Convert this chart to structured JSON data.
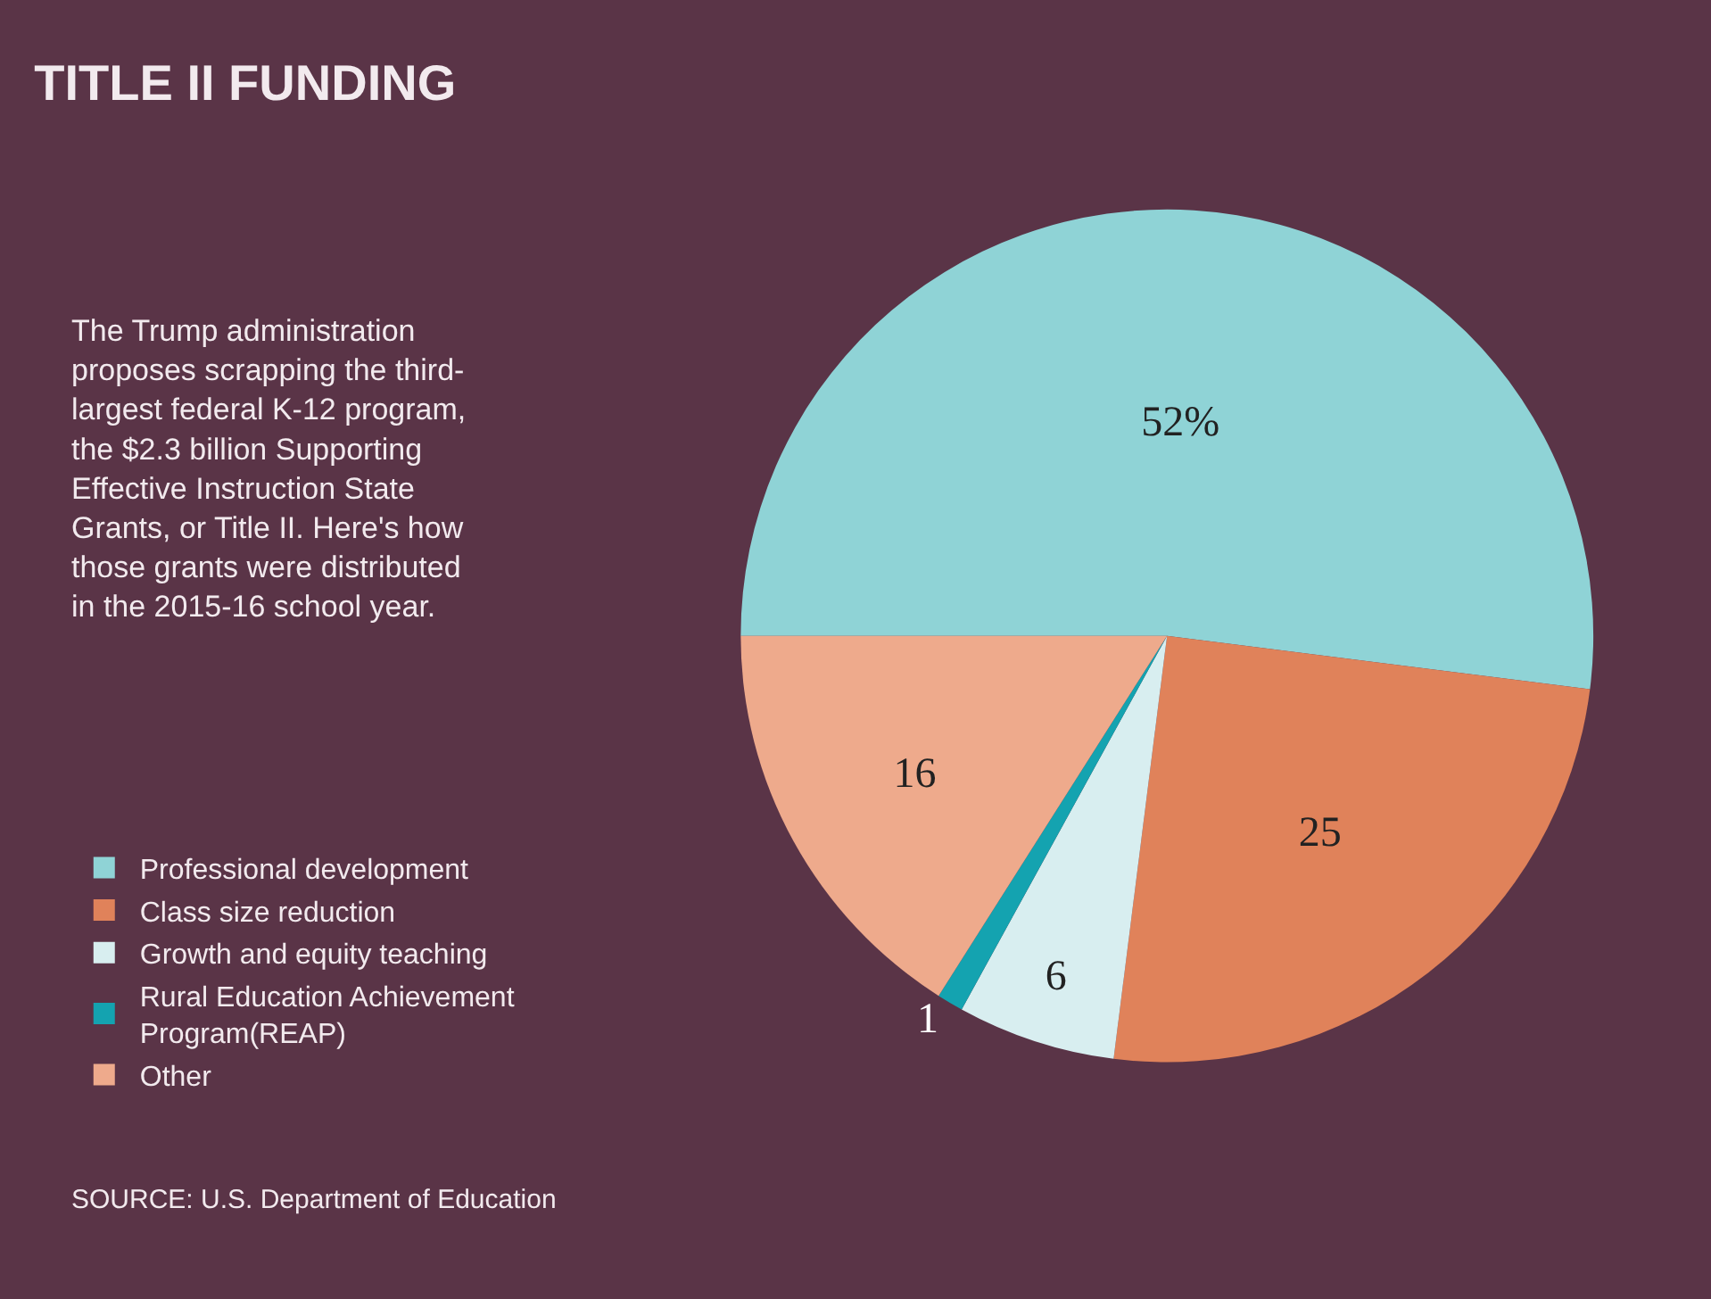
{
  "chart_data": {
    "type": "pie",
    "title": "TITLE II FUNDING",
    "subtitle": "The Trump administration proposes scrapping the third-largest federal K-12 program, the $2.3 billion Supporting Effective Instruction State Grants, or Title II. Here's how those grants were distributed in the 2015-16 school year.",
    "categories": [
      "Professional development",
      "Class size reduction",
      "Growth and equity teaching",
      "Rural Education Achievement Program(REAP)",
      "Other"
    ],
    "values": [
      52,
      25,
      6,
      1,
      16
    ],
    "value_labels": [
      "52%",
      "25",
      "6",
      "1",
      "16"
    ],
    "colors": [
      "#8fd3d6",
      "#e0825a",
      "#d8eef0",
      "#14a3b0",
      "#eeaa8c"
    ],
    "legend": "left",
    "annotations": [
      "SOURCE: U.S. Department of Education"
    ]
  }
}
